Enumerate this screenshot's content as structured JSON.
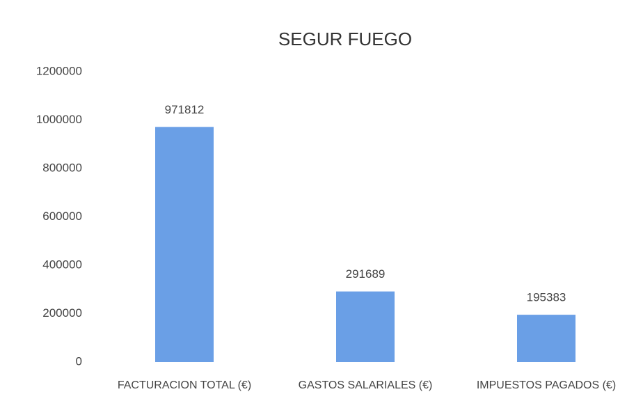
{
  "chart_data": {
    "type": "bar",
    "title": "SEGUR FUEGO",
    "categories": [
      "FACTURACION TOTAL (€)",
      "GASTOS SALARIALES (€)",
      "IMPUESTOS PAGADOS (€)"
    ],
    "values": [
      971812,
      291689,
      195383
    ],
    "color": "#6a9fe6",
    "ylim": [
      0,
      1200000
    ],
    "yticks": [
      0,
      200000,
      400000,
      600000,
      800000,
      1000000,
      1200000
    ],
    "grid": false
  }
}
